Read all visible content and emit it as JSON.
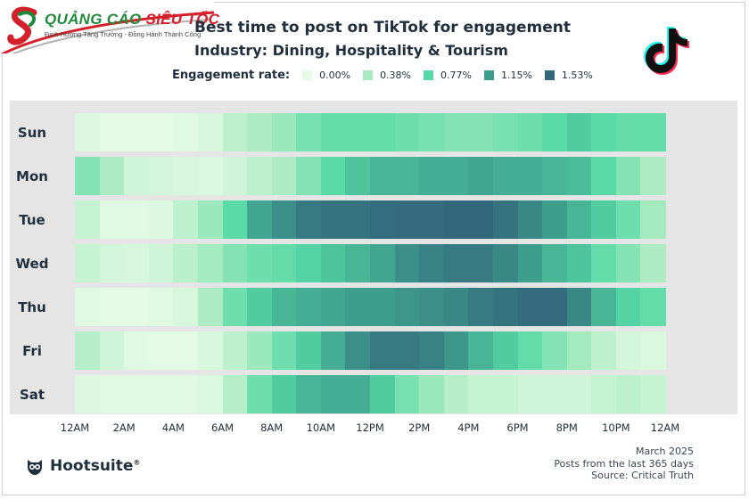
{
  "logo": {
    "brand_part1": "QUẢNG CÁO",
    "brand_part2": "SIÊU TỐC",
    "tagline": "Định Hướng Tăng Trưởng - Đồng Hành Thành Công"
  },
  "brand": {
    "name": "Hootsuite"
  },
  "colors": {
    "c0": "#e6fbe6",
    "c1": "#a8ebc0",
    "c2": "#56d9a6",
    "c3": "#3e9e8c",
    "c4": "#33677c",
    "text": "#1f2f3d",
    "panel": "#e5e5e5"
  },
  "chart_data": {
    "type": "heatmap",
    "title": "Best time to post on TikTok for engagement",
    "subtitle": "Industry: Dining, Hospitality & Tourism",
    "legend_title": "Engagement rate:",
    "legend": [
      {
        "label": "0.00%",
        "value": 0.0
      },
      {
        "label": "0.38%",
        "value": 0.38
      },
      {
        "label": "0.77%",
        "value": 0.77
      },
      {
        "label": "1.15%",
        "value": 1.15
      },
      {
        "label": "1.53%",
        "value": 1.53
      }
    ],
    "days": [
      "Sun",
      "Mon",
      "Tue",
      "Wed",
      "Thu",
      "Fri",
      "Sat"
    ],
    "x_tick_labels": [
      "12AM",
      "2AM",
      "4AM",
      "6AM",
      "8AM",
      "10AM",
      "12PM",
      "2PM",
      "4PM",
      "6PM",
      "8PM",
      "10PM",
      "12AM"
    ],
    "hours": 24,
    "values": [
      [
        0.06,
        0.02,
        0.02,
        0.02,
        0.04,
        0.1,
        0.25,
        0.35,
        0.45,
        0.6,
        0.7,
        0.7,
        0.7,
        0.65,
        0.6,
        0.55,
        0.55,
        0.6,
        0.65,
        0.75,
        0.85,
        0.75,
        0.7,
        0.7
      ],
      [
        0.55,
        0.35,
        0.15,
        0.12,
        0.1,
        0.08,
        0.15,
        0.25,
        0.35,
        0.55,
        0.75,
        0.9,
        1.0,
        1.0,
        1.05,
        1.05,
        1.1,
        1.05,
        1.05,
        1.0,
        0.95,
        0.75,
        0.55,
        0.35
      ],
      [
        0.2,
        0.04,
        0.04,
        0.06,
        0.25,
        0.45,
        0.75,
        1.1,
        1.25,
        1.4,
        1.45,
        1.45,
        1.48,
        1.5,
        1.5,
        1.52,
        1.53,
        1.45,
        1.3,
        1.15,
        1.0,
        0.85,
        0.65,
        0.4
      ],
      [
        0.2,
        0.12,
        0.1,
        0.15,
        0.28,
        0.4,
        0.55,
        0.65,
        0.7,
        0.8,
        0.9,
        1.0,
        1.1,
        1.25,
        1.35,
        1.4,
        1.4,
        1.3,
        1.15,
        1.0,
        0.9,
        0.7,
        0.55,
        0.35
      ],
      [
        0.04,
        0.02,
        0.02,
        0.04,
        0.1,
        0.35,
        0.65,
        0.85,
        1.0,
        1.05,
        1.1,
        1.15,
        1.15,
        1.2,
        1.25,
        1.3,
        1.4,
        1.45,
        1.5,
        1.5,
        1.3,
        1.0,
        0.8,
        0.7
      ],
      [
        0.3,
        0.15,
        0.04,
        0.02,
        0.02,
        0.1,
        0.25,
        0.45,
        0.65,
        0.85,
        1.05,
        1.25,
        1.4,
        1.4,
        1.35,
        1.2,
        1.0,
        0.85,
        0.7,
        0.55,
        0.4,
        0.25,
        0.12,
        0.08
      ],
      [
        0.06,
        0.04,
        0.04,
        0.04,
        0.04,
        0.08,
        0.3,
        0.65,
        0.85,
        1.0,
        1.05,
        1.05,
        0.85,
        0.6,
        0.45,
        0.3,
        0.2,
        0.2,
        0.15,
        0.15,
        0.15,
        0.2,
        0.25,
        0.2
      ]
    ],
    "vmin": 0.0,
    "vmax": 1.53
  },
  "footer": {
    "date": "March 2025",
    "note": "Posts from the last 365 days",
    "source": "Source: Critical Truth"
  }
}
